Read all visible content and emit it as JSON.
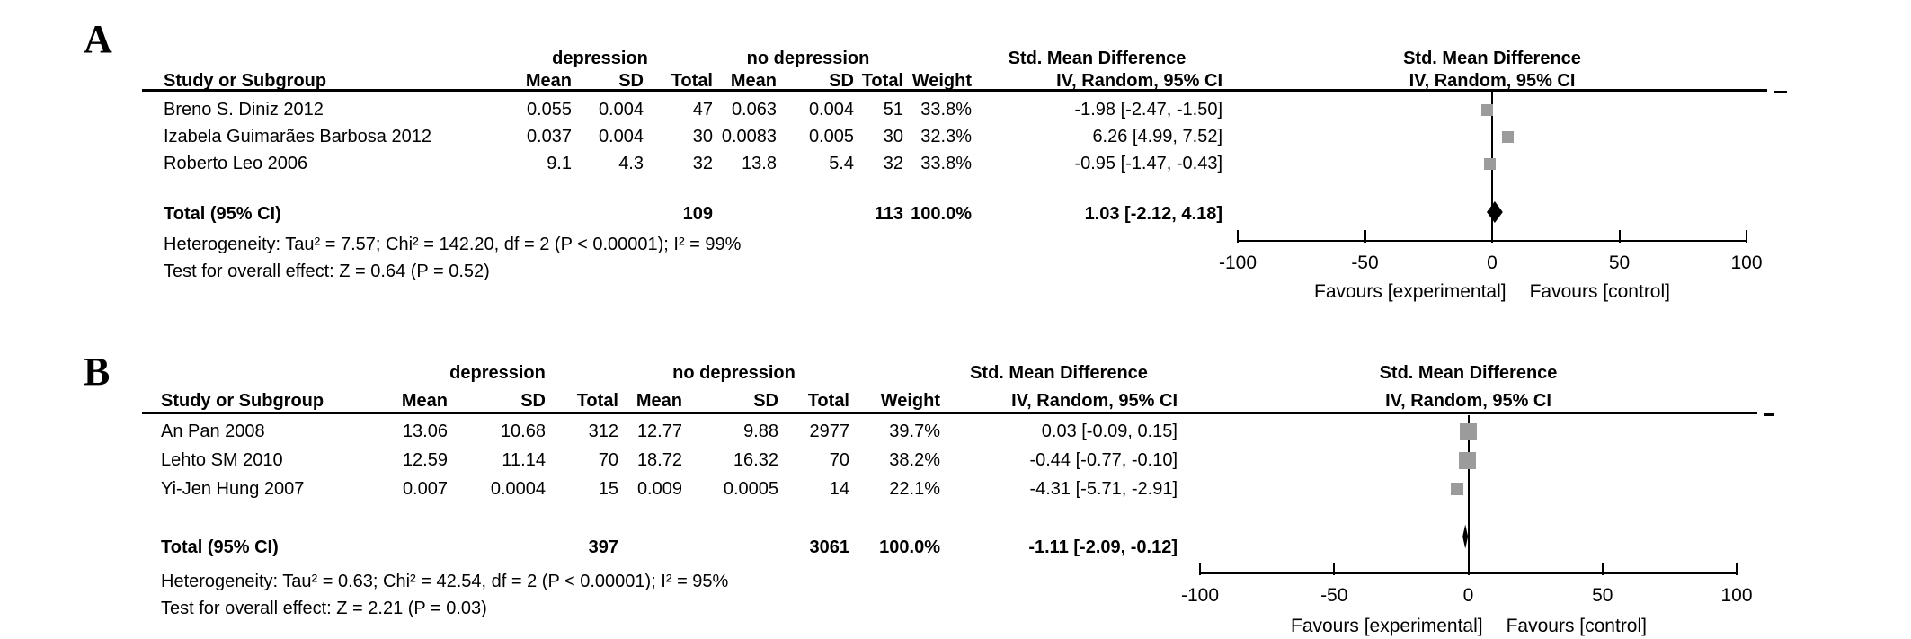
{
  "panel_labels": [
    "A",
    "B"
  ],
  "columns": {
    "study": "Study or Subgroup",
    "mean": "Mean",
    "sd": "SD",
    "total": "Total",
    "weight": "Weight"
  },
  "colors": {
    "square": "#9b9b9b",
    "diamond": "#000000",
    "line": "#000000",
    "text": "#000000",
    "background": "#ffffff"
  },
  "chart_data": [
    {
      "type": "scatter",
      "subtype": "forest_plot",
      "panel": "A",
      "title": "Std. Mean Difference",
      "method": "IV, Random, 95% CI",
      "groups": [
        "depression",
        "no depression"
      ],
      "studies": [
        {
          "name": "Breno S. Diniz 2012",
          "mean_dep": "0.055",
          "sd_dep": "0.004",
          "n_dep": "47",
          "mean_nodep": "0.063",
          "sd_nodep": "0.004",
          "n_nodep": "51",
          "weight": "33.8%",
          "weight_pct": 33.8,
          "smd": -1.98,
          "ci_lower": -2.47,
          "ci_upper": -1.5,
          "ci_text": "-1.98 [-2.47, -1.50]"
        },
        {
          "name": "Izabela Guimarães Barbosa 2012",
          "mean_dep": "0.037",
          "sd_dep": "0.004",
          "n_dep": "30",
          "mean_nodep": "0.0083",
          "sd_nodep": "0.005",
          "n_nodep": "30",
          "weight": "32.3%",
          "weight_pct": 32.3,
          "smd": 6.26,
          "ci_lower": 4.99,
          "ci_upper": 7.52,
          "ci_text": "6.26 [4.99, 7.52]"
        },
        {
          "name": "Roberto Leo 2006",
          "mean_dep": "9.1",
          "sd_dep": "4.3",
          "n_dep": "32",
          "mean_nodep": "13.8",
          "sd_nodep": "5.4",
          "n_nodep": "32",
          "weight": "33.8%",
          "weight_pct": 33.8,
          "smd": -0.95,
          "ci_lower": -1.47,
          "ci_upper": -0.43,
          "ci_text": "-0.95 [-1.47, -0.43]"
        }
      ],
      "total": {
        "label": "Total (95% CI)",
        "n_dep": "109",
        "n_nodep": "113",
        "weight": "100.0%",
        "smd": 1.03,
        "ci_lower": -2.12,
        "ci_upper": 4.18,
        "ci_text": "1.03 [-2.12, 4.18]"
      },
      "heterogeneity": "Heterogeneity: Tau² = 7.57; Chi² = 142.20, df = 2 (P < 0.00001); I² = 99%",
      "overall_effect_test": "Test for overall effect: Z = 0.64 (P = 0.52)",
      "x_axis": {
        "min": -100,
        "max": 100,
        "ticks": [
          -100,
          -50,
          0,
          50,
          100
        ],
        "label_left": "Favours [experimental]",
        "label_right": "Favours [control]"
      }
    },
    {
      "type": "scatter",
      "subtype": "forest_plot",
      "panel": "B",
      "title": "Std. Mean Difference",
      "method": "IV, Random, 95% CI",
      "groups": [
        "depression",
        "no depression"
      ],
      "studies": [
        {
          "name": "An Pan 2008",
          "mean_dep": "13.06",
          "sd_dep": "10.68",
          "n_dep": "312",
          "mean_nodep": "12.77",
          "sd_nodep": "9.88",
          "n_nodep": "2977",
          "weight": "39.7%",
          "weight_pct": 39.7,
          "smd": 0.03,
          "ci_lower": -0.09,
          "ci_upper": 0.15,
          "ci_text": "0.03 [-0.09, 0.15]"
        },
        {
          "name": "Lehto SM 2010",
          "mean_dep": "12.59",
          "sd_dep": "11.14",
          "n_dep": "70",
          "mean_nodep": "18.72",
          "sd_nodep": "16.32",
          "n_nodep": "70",
          "weight": "38.2%",
          "weight_pct": 38.2,
          "smd": -0.44,
          "ci_lower": -0.77,
          "ci_upper": -0.1,
          "ci_text": "-0.44 [-0.77, -0.10]"
        },
        {
          "name": "Yi-Jen Hung 2007",
          "mean_dep": "0.007",
          "sd_dep": "0.0004",
          "n_dep": "15",
          "mean_nodep": "0.009",
          "sd_nodep": "0.0005",
          "n_nodep": "14",
          "weight": "22.1%",
          "weight_pct": 22.1,
          "smd": -4.31,
          "ci_lower": -5.71,
          "ci_upper": -2.91,
          "ci_text": "-4.31 [-5.71, -2.91]"
        }
      ],
      "total": {
        "label": "Total (95% CI)",
        "n_dep": "397",
        "n_nodep": "3061",
        "weight": "100.0%",
        "smd": -1.11,
        "ci_lower": -2.09,
        "ci_upper": -0.12,
        "ci_text": "-1.11 [-2.09, -0.12]"
      },
      "heterogeneity": "Heterogeneity: Tau² = 0.63; Chi² = 42.54, df = 2 (P < 0.00001); I² = 95%",
      "overall_effect_test": "Test for overall effect: Z = 2.21 (P = 0.03)",
      "x_axis": {
        "min": -100,
        "max": 100,
        "ticks": [
          -100,
          -50,
          0,
          50,
          100
        ],
        "label_left": "Favours [experimental]",
        "label_right": "Favours [control]"
      }
    }
  ]
}
